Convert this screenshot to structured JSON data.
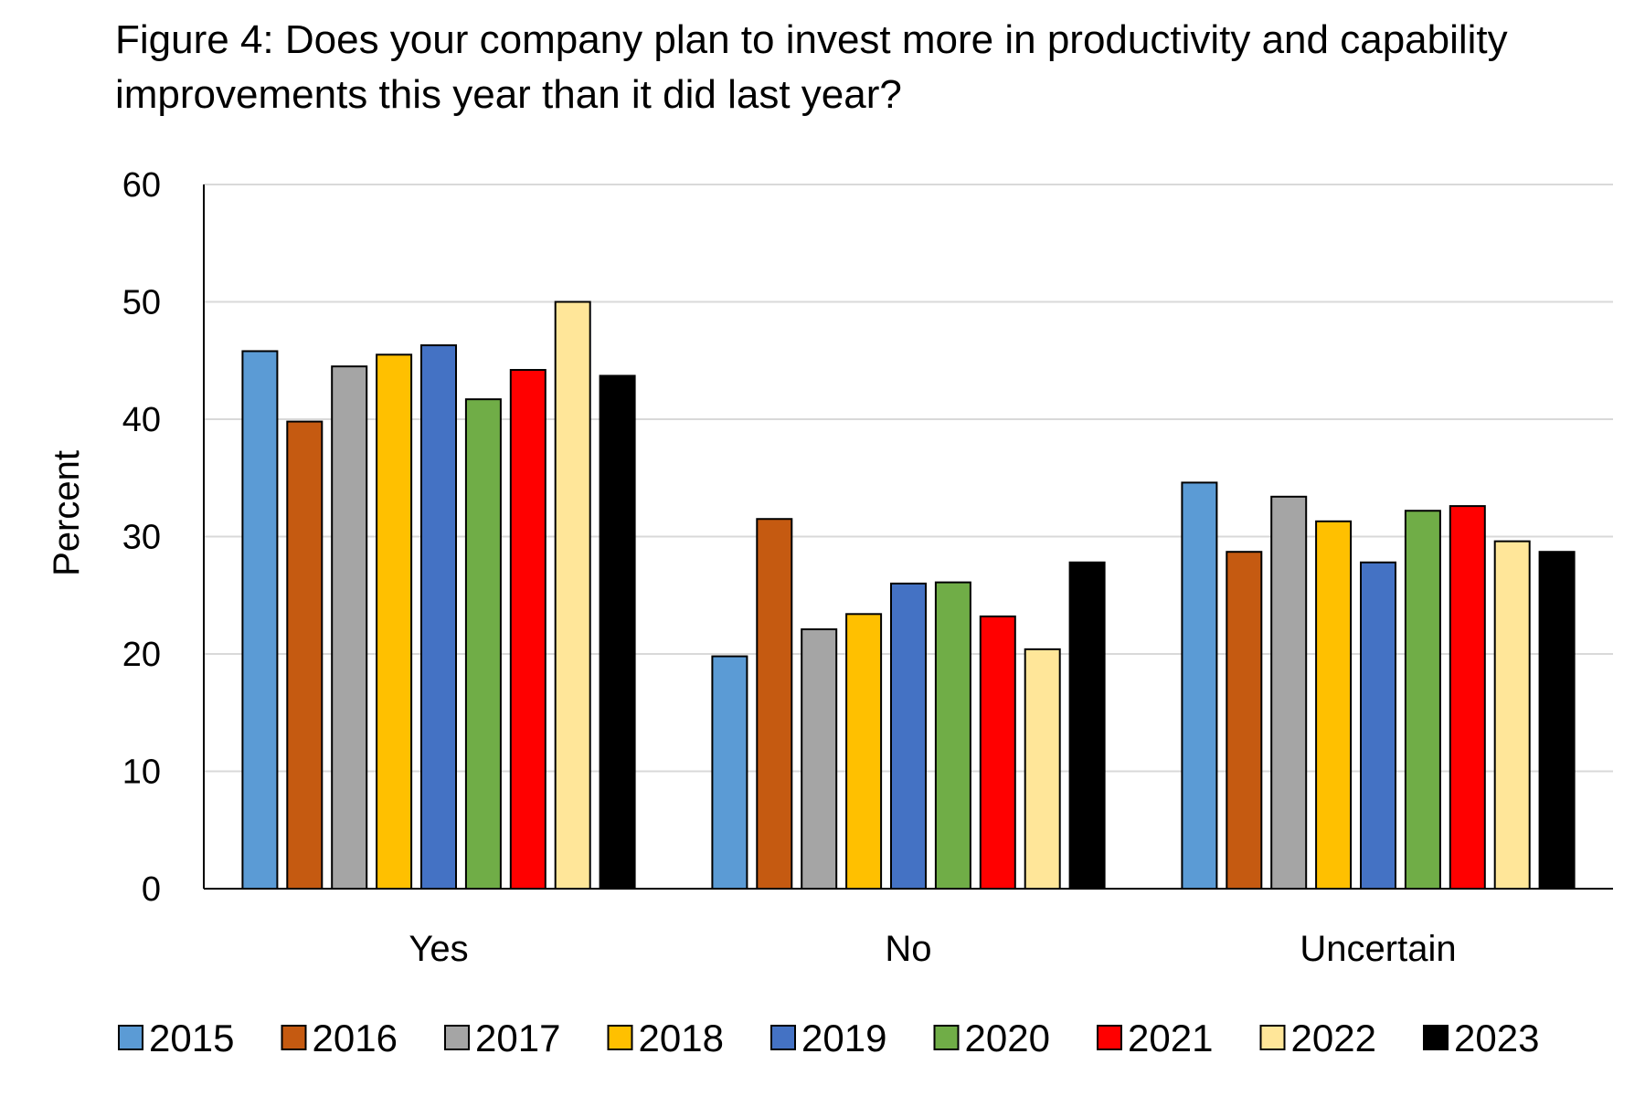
{
  "chart_data": {
    "type": "bar",
    "title_lines": [
      "Figure 4: Does your company plan to invest more in productivity and capability",
      "improvements this year than it did last year?"
    ],
    "xlabel": "",
    "ylabel": "Percent",
    "ylim": [
      0,
      60
    ],
    "yticks": [
      0,
      10,
      20,
      30,
      40,
      50,
      60
    ],
    "grid": true,
    "legend_position": "bottom",
    "categories": [
      "Yes",
      "No",
      "Uncertain"
    ],
    "series": [
      {
        "name": "2015",
        "color": "#5B9BD5",
        "values": [
          45.8,
          19.8,
          34.6
        ]
      },
      {
        "name": "2016",
        "color": "#C55A11",
        "values": [
          39.8,
          31.5,
          28.7
        ]
      },
      {
        "name": "2017",
        "color": "#A5A5A5",
        "values": [
          44.5,
          22.1,
          33.4
        ]
      },
      {
        "name": "2018",
        "color": "#FFC000",
        "values": [
          45.5,
          23.4,
          31.3
        ]
      },
      {
        "name": "2019",
        "color": "#4472C4",
        "values": [
          46.3,
          26.0,
          27.8
        ]
      },
      {
        "name": "2020",
        "color": "#70AD47",
        "values": [
          41.7,
          26.1,
          32.2
        ]
      },
      {
        "name": "2021",
        "color": "#FF0000",
        "values": [
          44.2,
          23.2,
          32.6
        ]
      },
      {
        "name": "2022",
        "color": "#FFE699",
        "values": [
          50.0,
          20.4,
          29.6
        ]
      },
      {
        "name": "2023",
        "color": "#000000",
        "values": [
          43.7,
          27.8,
          28.7
        ]
      }
    ]
  }
}
